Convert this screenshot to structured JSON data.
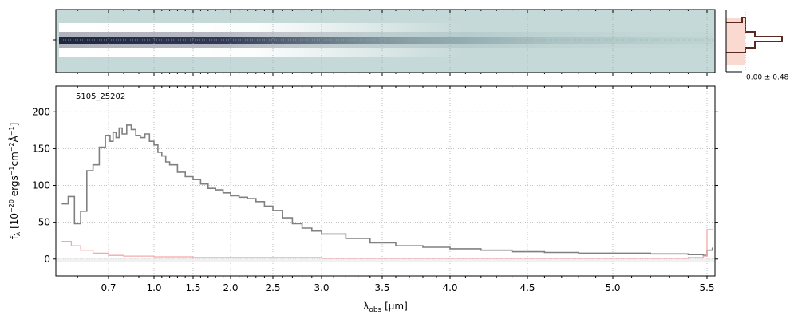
{
  "chart_data": {
    "type": "line",
    "spectrum_id": "5105_25202",
    "xlabel": "λ_obs [μm]",
    "ylabel": "f_λ [10^-20 ergs^-1 cm^-2 Å^-1]",
    "xlim": [
      0.53,
      5.53
    ],
    "ylim": [
      -23,
      235
    ],
    "x_ticks": [
      0.7,
      1.0,
      1.5,
      2.0,
      2.5,
      3.0,
      3.5,
      4.0,
      4.5,
      5.0,
      5.5
    ],
    "x_tick_labels": [
      "0.7",
      "1.0",
      "1.5",
      "2.0",
      "2.5",
      "3.0",
      "3.5",
      "4.0",
      "4.5",
      "5.0",
      "5.5"
    ],
    "y_ticks": [
      0,
      50,
      100,
      150,
      200
    ],
    "grid": true,
    "colors": {
      "flux": "#808080",
      "error": "#f4a8a8",
      "image_bg": "#c5d9d8",
      "trace_core": "#2b3350",
      "profile_fill": "#f8d0c4",
      "profile_line": "#5a2a22"
    },
    "series": [
      {
        "role": "flux",
        "x": [
          0.55,
          0.57,
          0.59,
          0.61,
          0.63,
          0.65,
          0.67,
          0.69,
          0.71,
          0.73,
          0.75,
          0.77,
          0.79,
          0.82,
          0.85,
          0.88,
          0.91,
          0.94,
          0.97,
          1.0,
          1.05,
          1.1,
          1.15,
          1.2,
          1.3,
          1.4,
          1.5,
          1.6,
          1.7,
          1.8,
          1.9,
          2.0,
          2.1,
          2.2,
          2.3,
          2.4,
          2.5,
          2.6,
          2.7,
          2.8,
          2.9,
          3.0,
          3.2,
          3.4,
          3.6,
          3.8,
          4.0,
          4.2,
          4.4,
          4.6,
          4.8,
          5.0,
          5.2,
          5.4,
          5.48,
          5.5,
          5.52
        ],
        "y": [
          75,
          85,
          48,
          65,
          120,
          128,
          152,
          168,
          160,
          172,
          165,
          178,
          170,
          182,
          176,
          168,
          165,
          170,
          160,
          155,
          145,
          140,
          132,
          128,
          118,
          112,
          108,
          102,
          96,
          94,
          90,
          86,
          84,
          82,
          78,
          72,
          66,
          56,
          48,
          42,
          38,
          34,
          28,
          22,
          18,
          16,
          14,
          12,
          10,
          9,
          8,
          8,
          7,
          6,
          5,
          12,
          15
        ]
      },
      {
        "role": "error",
        "x": [
          0.55,
          0.58,
          0.61,
          0.65,
          0.7,
          0.8,
          1.0,
          1.5,
          2.0,
          3.0,
          4.0,
          5.0,
          5.4,
          5.48,
          5.5,
          5.52
        ],
        "y": [
          24,
          18,
          12,
          8,
          5,
          4,
          3,
          2,
          2,
          1,
          1,
          1,
          2,
          4,
          40,
          40
        ]
      }
    ],
    "profile_label": "0.00 ± 0.48"
  }
}
